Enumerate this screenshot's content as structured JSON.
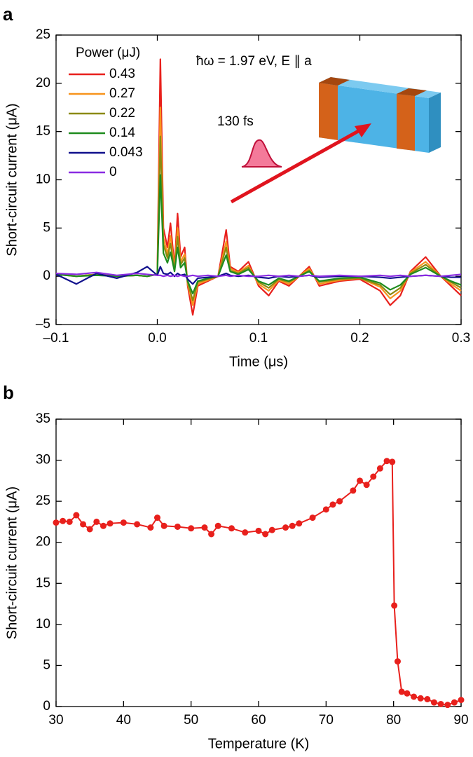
{
  "chart_data": [
    {
      "type": "line",
      "panel_label": "a",
      "x_label": "Time (μs)",
      "y_label": "Short-circuit current (μA)",
      "legend_title": "Power (μJ)",
      "legend": "upper-left",
      "annotations": [
        "ħω = 1.97 eV, E ∥ a",
        "130 fs"
      ],
      "xlim": [
        -0.1,
        0.3
      ],
      "ylim": [
        -5,
        25
      ],
      "xticks": [
        {
          "value": -0.1,
          "label": "–0.1"
        },
        {
          "value": 0,
          "label": "0.0"
        },
        0.1,
        0.2,
        0.3
      ],
      "yticks": [
        {
          "value": -5,
          "label": "–5"
        },
        0,
        5,
        10,
        15,
        20,
        25
      ],
      "x": [
        -0.1,
        -0.08,
        -0.06,
        -0.04,
        -0.02,
        -0.01,
        0,
        0.003,
        0.006,
        0.01,
        0.013,
        0.017,
        0.02,
        0.023,
        0.027,
        0.03,
        0.035,
        0.04,
        0.05,
        0.06,
        0.068,
        0.072,
        0.08,
        0.09,
        0.1,
        0.11,
        0.12,
        0.13,
        0.14,
        0.15,
        0.16,
        0.18,
        0.2,
        0.22,
        0.23,
        0.24,
        0.25,
        0.265,
        0.28,
        0.29,
        0.3
      ],
      "series": [
        {
          "name": "0.43",
          "color": "#e8201c",
          "values": [
            0.3,
            0,
            0.2,
            0,
            0.1,
            0,
            0.2,
            22.5,
            5,
            3,
            5.5,
            1,
            6.5,
            2,
            3,
            -1,
            -4,
            -1,
            -0.5,
            0,
            4.8,
            1,
            0.5,
            1.5,
            -1,
            -2,
            -0.5,
            -1,
            0,
            1,
            -1,
            -0.5,
            -0.3,
            -1.5,
            -3,
            -2,
            0.5,
            2,
            0,
            -1,
            -2
          ]
        },
        {
          "name": "0.27",
          "color": "#f7941d",
          "values": [
            0.3,
            0,
            0.2,
            0,
            0.1,
            0,
            0.2,
            17.5,
            4,
            2.3,
            4.2,
            0.8,
            5,
            1.5,
            2.3,
            -0.8,
            -3,
            -0.8,
            -0.4,
            0,
            3.6,
            0.8,
            0.4,
            1.1,
            -0.8,
            -1.5,
            -0.4,
            -0.8,
            0,
            0.8,
            -0.8,
            -0.4,
            -0.2,
            -1.1,
            -2.3,
            -1.5,
            0.4,
            1.5,
            0,
            -0.8,
            -1.5
          ]
        },
        {
          "name": "0.22",
          "color": "#8c8a10",
          "values": [
            0.2,
            0,
            0.2,
            0,
            0.1,
            0,
            0.2,
            14.5,
            3.3,
            1.9,
            3.4,
            0.6,
            4.1,
            1.2,
            1.9,
            -0.6,
            -2.5,
            -0.6,
            -0.3,
            0,
            3,
            0.6,
            0.3,
            0.9,
            -0.6,
            -1.2,
            -0.3,
            -0.6,
            0,
            0.6,
            -0.6,
            -0.3,
            -0.2,
            -0.9,
            -1.9,
            -1.2,
            0.3,
            1.2,
            0,
            -0.6,
            -1.2
          ]
        },
        {
          "name": "0.14",
          "color": "#1e8c1e",
          "values": [
            0.2,
            0,
            0.1,
            0,
            0.1,
            0,
            0.2,
            10.5,
            2.4,
            1.4,
            2.5,
            0.5,
            3,
            0.9,
            1.4,
            -0.5,
            -1.8,
            -0.5,
            -0.2,
            0,
            2.2,
            0.5,
            0.2,
            0.7,
            -0.5,
            -0.9,
            -0.2,
            -0.5,
            0,
            0.5,
            -0.5,
            -0.2,
            -0.1,
            -0.7,
            -1.4,
            -0.9,
            0.2,
            0.9,
            0,
            -0.5,
            -0.9
          ]
        },
        {
          "name": "0.043",
          "color": "#10108c",
          "values": [
            0.2,
            -0.8,
            0.3,
            -0.2,
            0.4,
            1,
            0.1,
            1,
            0.3,
            0.2,
            0.4,
            0,
            0.3,
            0.1,
            0.2,
            -0.3,
            -0.8,
            -0.2,
            -0.1,
            0,
            0.3,
            0.1,
            0,
            0.1,
            -0.1,
            -0.2,
            0,
            -0.1,
            0,
            0.1,
            -0.1,
            0,
            0,
            -0.1,
            -0.2,
            -0.1,
            0,
            0.1,
            0,
            -0.1,
            -0.1
          ]
        },
        {
          "name": "0",
          "color": "#8a2be2",
          "values": [
            0.3,
            0.2,
            0.4,
            0.1,
            0.3,
            0.2,
            0.1,
            0.1,
            0,
            0.1,
            0,
            0.1,
            0,
            0.1,
            0,
            0,
            0.1,
            0,
            0.1,
            0,
            0.1,
            0,
            0.1,
            0,
            0,
            0.1,
            0,
            0.1,
            0,
            0.1,
            0,
            0.1,
            0,
            0.1,
            0,
            0.1,
            0,
            0.1,
            0,
            0.1,
            0.2
          ]
        }
      ]
    },
    {
      "type": "line",
      "panel_label": "b",
      "markers": true,
      "x_label": "Temperature (K)",
      "y_label": "Short-circuit current (μA)",
      "xlim": [
        30,
        90
      ],
      "ylim": [
        0,
        35
      ],
      "xticks": [
        30,
        40,
        50,
        60,
        70,
        80,
        90
      ],
      "yticks": [
        0,
        5,
        10,
        15,
        20,
        25,
        30,
        35
      ],
      "x": [
        30,
        31,
        32,
        33,
        34,
        35,
        36,
        37,
        38,
        40,
        42,
        44,
        45,
        46,
        48,
        50,
        52,
        53,
        54,
        56,
        58,
        60,
        61,
        62,
        64,
        65,
        66,
        68,
        70,
        71,
        72,
        74,
        75,
        76,
        77,
        78,
        79,
        79.8,
        80.1,
        80.6,
        81.2,
        82,
        83,
        84,
        85,
        86,
        87,
        88,
        89,
        90
      ],
      "series": [
        {
          "color": "#e8201c",
          "values": [
            22.4,
            22.6,
            22.5,
            23.3,
            22.2,
            21.6,
            22.5,
            22,
            22.3,
            22.4,
            22.2,
            21.8,
            23,
            22,
            21.9,
            21.7,
            21.8,
            21,
            22,
            21.7,
            21.2,
            21.4,
            21,
            21.5,
            21.8,
            22,
            22.3,
            23,
            24,
            24.6,
            25,
            26.3,
            27.5,
            27,
            28,
            29,
            29.9,
            29.8,
            12.3,
            5.5,
            1.8,
            1.6,
            1.2,
            1,
            0.9,
            0.5,
            0.3,
            0.2,
            0.5,
            0.8
          ]
        }
      ]
    }
  ]
}
